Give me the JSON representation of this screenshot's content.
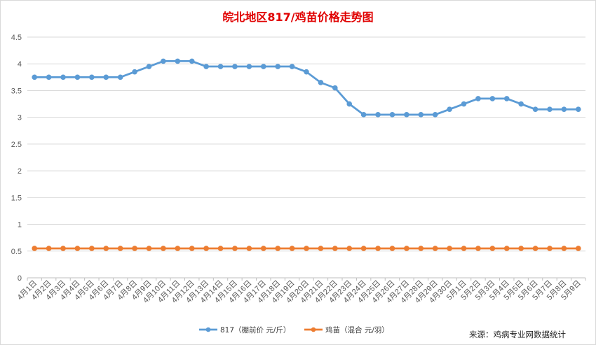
{
  "chart_data": {
    "type": "line",
    "title": "皖北地区817/鸡苗价格走势图",
    "source": "来源：鸡病专业网数据统计",
    "categories": [
      "4月1日",
      "4月2日",
      "4月3日",
      "4月4日",
      "4月5日",
      "4月6日",
      "4月7日",
      "4月8日",
      "4月9日",
      "4月10日",
      "4月11日",
      "4月12日",
      "4月13日",
      "4月14日",
      "4月15日",
      "4月16日",
      "4月17日",
      "4月18日",
      "4月19日",
      "4月20日",
      "4月21日",
      "4月22日",
      "4月23日",
      "4月24日",
      "4月25日",
      "4月26日",
      "4月27日",
      "4月28日",
      "4月29日",
      "4月30日",
      "5月1日",
      "5月2日",
      "5月3日",
      "5月4日",
      "5月5日",
      "5月6日",
      "5月7日",
      "5月8日",
      "5月9日"
    ],
    "ylim": [
      0,
      4.5
    ],
    "yticks": [
      "0",
      "0.5",
      "1",
      "1.5",
      "2",
      "2.5",
      "3",
      "3.5",
      "4",
      "4.5"
    ],
    "grid": true,
    "legend_position": "bottom",
    "series": [
      {
        "name": "817（棚前价 元/斤）",
        "color": "#5b9bd5",
        "values": [
          3.75,
          3.75,
          3.75,
          3.75,
          3.75,
          3.75,
          3.75,
          3.85,
          3.95,
          4.05,
          4.05,
          4.05,
          3.95,
          3.95,
          3.95,
          3.95,
          3.95,
          3.95,
          3.95,
          3.85,
          3.65,
          3.55,
          3.25,
          3.05,
          3.05,
          3.05,
          3.05,
          3.05,
          3.05,
          3.15,
          3.25,
          3.35,
          3.35,
          3.35,
          3.25,
          3.15,
          3.15,
          3.15,
          3.15
        ]
      },
      {
        "name": "鸡苗（混合 元/羽）",
        "color": "#ed7d31",
        "values": [
          0.55,
          0.55,
          0.55,
          0.55,
          0.55,
          0.55,
          0.55,
          0.55,
          0.55,
          0.55,
          0.55,
          0.55,
          0.55,
          0.55,
          0.55,
          0.55,
          0.55,
          0.55,
          0.55,
          0.55,
          0.55,
          0.55,
          0.55,
          0.55,
          0.55,
          0.55,
          0.55,
          0.55,
          0.55,
          0.55,
          0.55,
          0.55,
          0.55,
          0.55,
          0.55,
          0.55,
          0.55,
          0.55,
          0.55
        ]
      }
    ]
  }
}
